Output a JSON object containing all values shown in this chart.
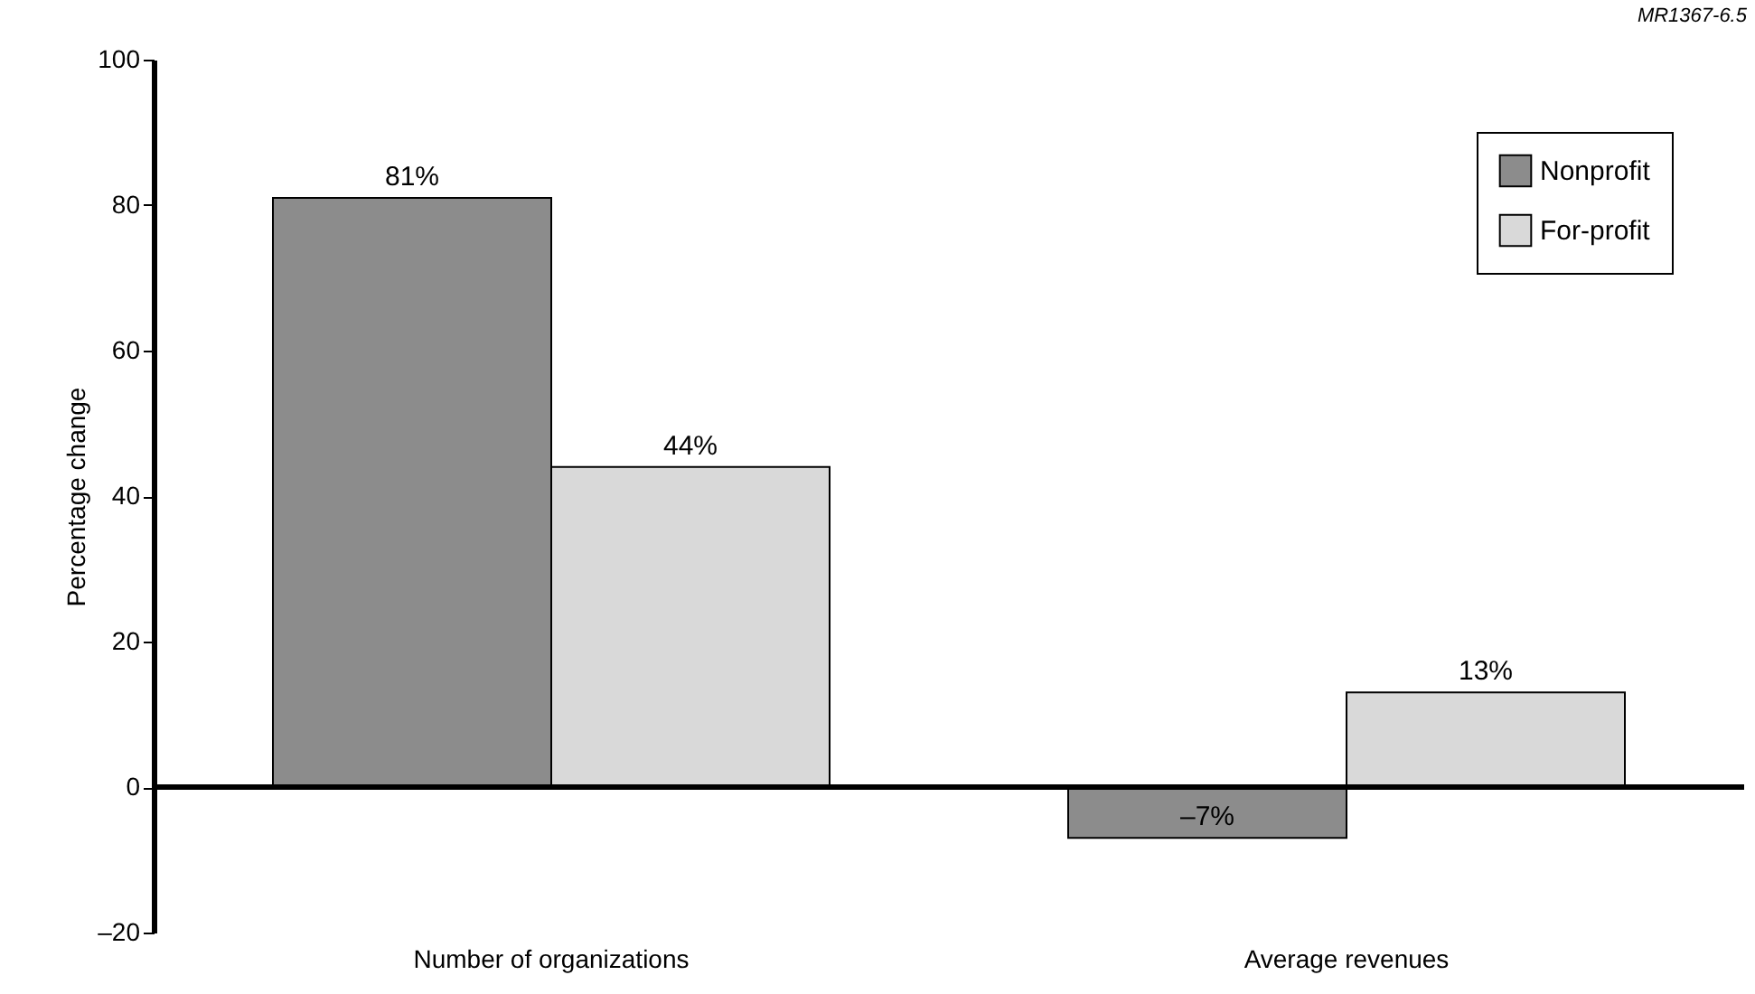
{
  "chart_data": {
    "type": "bar",
    "ylabel": "Percentage change",
    "categories": [
      "Number of organizations",
      "Average revenues"
    ],
    "series": [
      {
        "name": "Nonprofit",
        "color": "#8c8c8c",
        "values": [
          81,
          -7
        ],
        "value_labels": [
          "81%",
          "–7%"
        ]
      },
      {
        "name": "For-profit",
        "color": "#d9d9d9",
        "values": [
          44,
          13
        ],
        "value_labels": [
          "44%",
          "13%"
        ]
      }
    ],
    "ylim": [
      -20,
      100
    ],
    "yticks": [
      {
        "value": -20,
        "label": "–20"
      },
      0,
      20,
      40,
      60,
      80,
      100
    ],
    "ref_lines": [
      {
        "axis": "y",
        "value": 0
      }
    ],
    "grid": false,
    "legend": "top right",
    "annotations": [
      "MR1367-6.5"
    ]
  }
}
